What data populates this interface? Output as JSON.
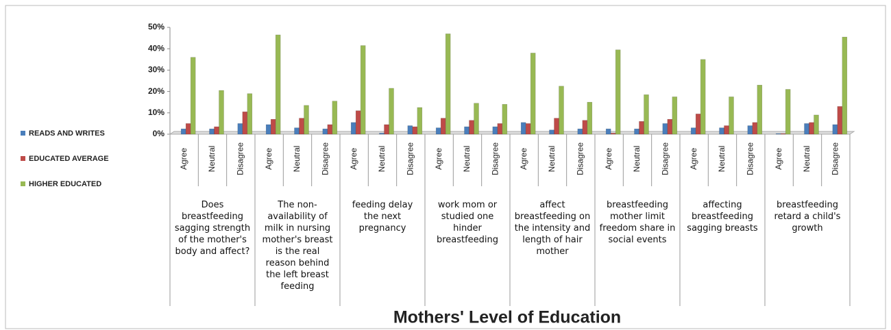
{
  "chart_data": {
    "type": "bar",
    "title": "Mothers' Level of Education",
    "groups": [
      "Does breastfeeding sagging strength of the mother's body and affect?",
      "The non-availability of milk in nursing mother's breast is the real reason behind the left breast feeding",
      "feeding delay the next pregnancy",
      "work mom or studied one hinder breastfeeding",
      "affect breastfeeding on the intensity and length of hair mother",
      "breastfeeding mother limit freedom share in social events",
      "affecting breastfeeding sagging breasts",
      "breastfeeding retard a child's growth"
    ],
    "categories": [
      "Agree",
      "Neutral",
      "Disagree",
      "Agree",
      "Neutral",
      "Disagree",
      "Agree",
      "Neutral",
      "Disagree",
      "Agree",
      "Neutral",
      "Disagree",
      "Agree",
      "Neutral",
      "Disagree",
      "Agree",
      "Neutral",
      "Disagree",
      "Agree",
      "Neutral",
      "Disagree",
      "Agree",
      "Neutral",
      "Disagree"
    ],
    "series": [
      {
        "name": "READS AND WRITES",
        "color": "#4a7ebb",
        "values": [
          2.5,
          2.5,
          5,
          4.5,
          3,
          2.5,
          5.5,
          0.5,
          4,
          3,
          3.5,
          3.5,
          5.5,
          2,
          2.5,
          2.5,
          2.5,
          5,
          3,
          3,
          4,
          0.3,
          5,
          4.5
        ]
      },
      {
        "name": "EDUCATED AVERAGE",
        "color": "#be4b48",
        "values": [
          5,
          3.5,
          10.5,
          7,
          7.5,
          4.5,
          11,
          4.5,
          3.5,
          7.5,
          6.5,
          5,
          5,
          7.5,
          6.5,
          0.5,
          6,
          7,
          9.5,
          4,
          5.5,
          0.3,
          5.5,
          13
        ]
      },
      {
        "name": "HIGHER EDUCATED",
        "color": "#98b954",
        "values": [
          36,
          20.5,
          19,
          46.5,
          13.5,
          15.5,
          41.5,
          21.5,
          12.5,
          47,
          14.5,
          14,
          38,
          22.5,
          15,
          39.5,
          18.5,
          17.5,
          35,
          17.5,
          23,
          21,
          9,
          45.5
        ]
      }
    ],
    "ylim": [
      0,
      50
    ],
    "yticks": [
      {
        "value": 0,
        "label": "0%"
      },
      {
        "value": 10,
        "label": "10%"
      },
      {
        "value": 20,
        "label": "20%"
      },
      {
        "value": 30,
        "label": "30%"
      },
      {
        "value": 40,
        "label": "40%"
      },
      {
        "value": 50,
        "label": "50%"
      }
    ],
    "legend": "left"
  }
}
